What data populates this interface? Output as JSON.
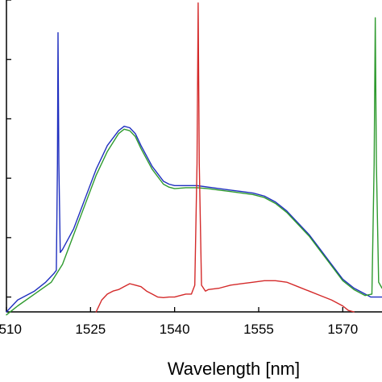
{
  "chart_data": {
    "type": "line",
    "title": "",
    "xlabel": "Wavelength [nm]",
    "ylabel": "",
    "xlim": [
      1510,
      1577
    ],
    "ylim": [
      0,
      1.05
    ],
    "x_ticks": [
      1510,
      1525,
      1540,
      1555,
      1570
    ],
    "x_tick_labels": [
      "1510",
      "1525",
      "1540",
      "1555",
      "1570"
    ],
    "y_ticks": [
      0.05,
      0.25,
      0.45,
      0.65,
      0.85,
      1.05
    ],
    "grid": false,
    "legend": "none",
    "series": [
      {
        "color": "#1f2fbf",
        "x": [
          1510,
          1512,
          1515,
          1517,
          1518.5,
          1518.9,
          1519.1,
          1519.2,
          1519.35,
          1519.6,
          1520,
          1522,
          1524,
          1526,
          1528,
          1530,
          1531,
          1532,
          1533,
          1534,
          1536,
          1538,
          1539,
          1540,
          1542,
          1544,
          1546,
          1548,
          1550,
          1552,
          1554,
          1556,
          1558,
          1560,
          1562,
          1564,
          1566,
          1568,
          1570,
          1572,
          1574,
          1575,
          1577
        ],
        "y": [
          0.0,
          0.04,
          0.07,
          0.1,
          0.13,
          0.14,
          0.5,
          0.94,
          0.5,
          0.2,
          0.21,
          0.28,
          0.38,
          0.48,
          0.56,
          0.61,
          0.625,
          0.62,
          0.6,
          0.56,
          0.49,
          0.44,
          0.43,
          0.425,
          0.425,
          0.425,
          0.42,
          0.415,
          0.41,
          0.405,
          0.4,
          0.39,
          0.37,
          0.34,
          0.3,
          0.26,
          0.21,
          0.16,
          0.11,
          0.08,
          0.06,
          0.05,
          0.05
        ]
      },
      {
        "color": "#2e9a2e",
        "x": [
          1510,
          1512,
          1515,
          1518,
          1520,
          1522,
          1524,
          1526,
          1528,
          1530,
          1531,
          1532,
          1533,
          1534,
          1536,
          1538,
          1539,
          1540,
          1542,
          1544,
          1546,
          1548,
          1550,
          1552,
          1554,
          1556,
          1558,
          1560,
          1562,
          1564,
          1566,
          1568,
          1570,
          1572,
          1574,
          1575.2,
          1575.6,
          1575.8,
          1576,
          1576.4,
          1577
        ],
        "y": [
          -0.01,
          0.02,
          0.06,
          0.1,
          0.16,
          0.26,
          0.36,
          0.46,
          0.54,
          0.6,
          0.615,
          0.61,
          0.59,
          0.55,
          0.48,
          0.43,
          0.42,
          0.415,
          0.418,
          0.418,
          0.415,
          0.41,
          0.405,
          0.4,
          0.395,
          0.385,
          0.365,
          0.335,
          0.295,
          0.255,
          0.205,
          0.155,
          0.105,
          0.075,
          0.055,
          0.06,
          0.5,
          0.99,
          0.5,
          0.1,
          0.08
        ]
      },
      {
        "color": "#d42a2a",
        "x": [
          1526,
          1527,
          1528,
          1529,
          1530,
          1531,
          1532,
          1533,
          1534,
          1535,
          1536,
          1537,
          1538,
          1539,
          1540,
          1541,
          1542,
          1543,
          1543.6,
          1544,
          1544.2,
          1544.4,
          1544.8,
          1545.5,
          1546,
          1548,
          1550,
          1552,
          1554,
          1556,
          1558,
          1560,
          1562,
          1564,
          1566,
          1568,
          1570,
          1571,
          1572
        ],
        "y": [
          0.0,
          0.04,
          0.06,
          0.07,
          0.075,
          0.085,
          0.095,
          0.09,
          0.085,
          0.07,
          0.06,
          0.05,
          0.048,
          0.05,
          0.05,
          0.055,
          0.06,
          0.06,
          0.09,
          0.5,
          1.04,
          0.5,
          0.09,
          0.07,
          0.075,
          0.08,
          0.09,
          0.095,
          0.1,
          0.105,
          0.105,
          0.1,
          0.085,
          0.07,
          0.055,
          0.04,
          0.02,
          0.005,
          0.0
        ]
      }
    ]
  }
}
